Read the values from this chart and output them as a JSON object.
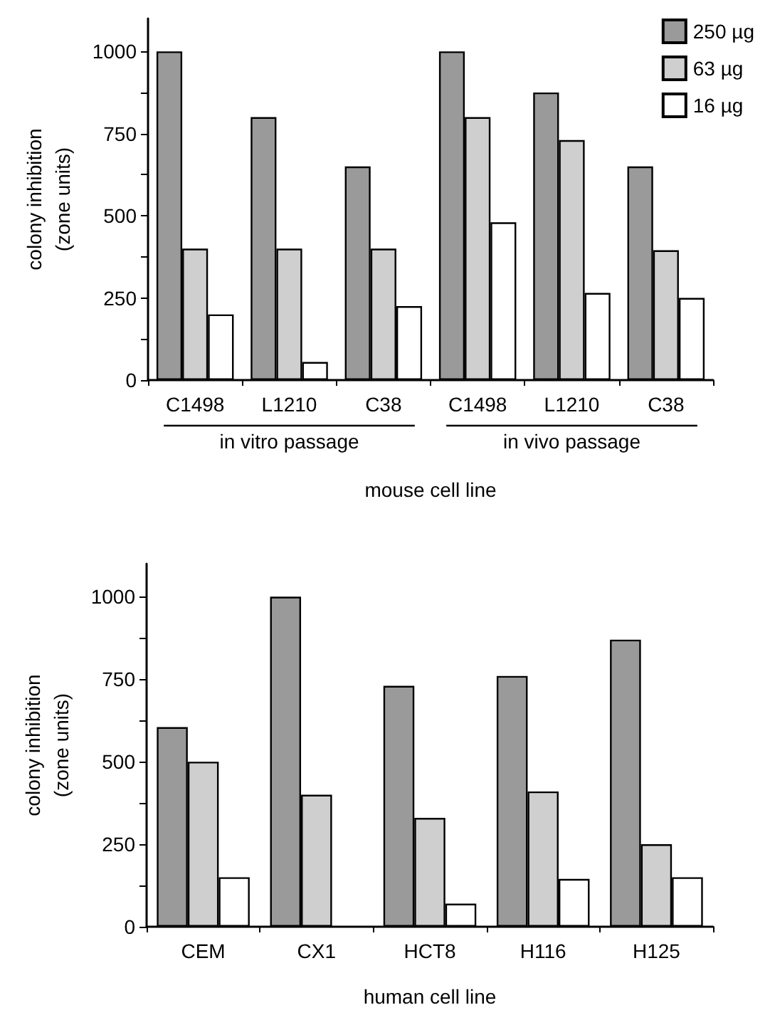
{
  "chart_data": [
    {
      "type": "bar",
      "xlabel": "mouse cell line",
      "ylabel": "colony inhibition\n(zone units)",
      "categories": [
        "C1498",
        "L1210",
        "C38",
        "C1498",
        "L1210",
        "C38"
      ],
      "series": [
        {
          "name": "250 µg",
          "color": "#9a9a9a",
          "values": [
            1000,
            800,
            650,
            1000,
            875,
            650
          ]
        },
        {
          "name": "63 µg",
          "color": "#cfcfcf",
          "values": [
            400,
            400,
            400,
            800,
            730,
            395
          ]
        },
        {
          "name": "16 µg",
          "color": "#ffffff",
          "values": [
            200,
            55,
            225,
            480,
            265,
            250
          ]
        }
      ],
      "ylim": [
        0,
        1100
      ],
      "yticks": [
        0,
        {
          "value": 125,
          "label": null
        },
        250,
        {
          "value": 375,
          "label": null
        },
        500,
        {
          "value": 625,
          "label": null
        },
        750,
        {
          "value": 875,
          "label": null
        },
        1000
      ],
      "annotations": [
        "in vitro passage",
        "in vivo passage"
      ],
      "legend": "top right",
      "grid": false
    },
    {
      "type": "bar",
      "xlabel": "human cell line",
      "ylabel": "colony inhibition\n(zone units)",
      "categories": [
        "CEM",
        "CX1",
        "HCT8",
        "H116",
        "H125"
      ],
      "series": [
        {
          "color": "#9a9a9a",
          "values": [
            605,
            1000,
            730,
            760,
            870
          ]
        },
        {
          "color": "#cfcfcf",
          "values": [
            500,
            400,
            330,
            410,
            250
          ]
        },
        {
          "color": "#ffffff",
          "values": [
            150,
            null,
            70,
            145,
            150
          ]
        }
      ],
      "ylim": [
        0,
        1100
      ],
      "yticks": [
        0,
        {
          "value": 125,
          "label": null
        },
        250,
        {
          "value": 375,
          "label": null
        },
        500,
        {
          "value": 625,
          "label": null
        },
        750,
        {
          "value": 875,
          "label": null
        },
        1000
      ],
      "legend": false,
      "grid": false
    }
  ]
}
